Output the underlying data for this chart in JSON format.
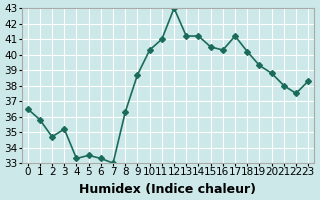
{
  "x": [
    0,
    1,
    2,
    3,
    4,
    5,
    6,
    7,
    8,
    9,
    10,
    11,
    12,
    13,
    14,
    15,
    16,
    17,
    18,
    19,
    20,
    21,
    22,
    23
  ],
  "y": [
    36.5,
    35.8,
    34.7,
    35.2,
    33.3,
    33.5,
    33.3,
    33.0,
    36.3,
    38.7,
    40.3,
    41.0,
    43.0,
    41.2,
    41.2,
    40.5,
    40.3,
    41.2,
    40.2,
    39.3,
    38.8,
    38.0,
    37.5,
    38.3
  ],
  "xlim": [
    -0.5,
    23.5
  ],
  "ylim": [
    33,
    43
  ],
  "yticks": [
    33,
    34,
    35,
    36,
    37,
    38,
    39,
    40,
    41,
    42,
    43
  ],
  "xticks": [
    0,
    1,
    2,
    3,
    4,
    5,
    6,
    7,
    8,
    9,
    10,
    11,
    12,
    13,
    14,
    15,
    16,
    17,
    18,
    19,
    20,
    21,
    22,
    23
  ],
  "xlabel": "Humidex (Indice chaleur)",
  "line_color": "#1a6b5a",
  "marker": "D",
  "marker_size": 3,
  "bg_color": "#cce8e8",
  "grid_color": "#ffffff",
  "title_fontsize": 9,
  "xlabel_fontsize": 9,
  "tick_fontsize": 7.5
}
